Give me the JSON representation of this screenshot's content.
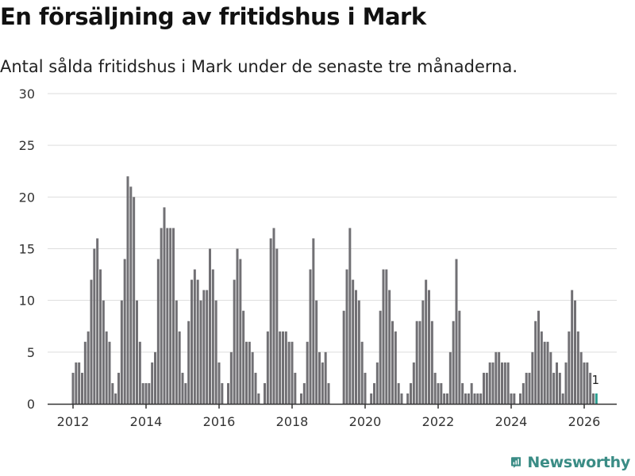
{
  "colors": {
    "bar": "#717074",
    "highlight": "#2a9d8f",
    "grid": "#dddddd",
    "axis": "#333333",
    "brand": "#3a8c85"
  },
  "brand": {
    "name": "Newsworthy"
  },
  "chart_data": {
    "type": "bar",
    "title": "En försäljning av fritidshus i Mark",
    "subtitle": "Antal sålda fritidshus i Mark under de senaste tre månaderna.",
    "xlabel": "",
    "ylabel": "",
    "ylim": [
      0,
      30
    ],
    "yticks": [
      0,
      5,
      10,
      15,
      20,
      25,
      30
    ],
    "xticks": [
      "2012",
      "2014",
      "2016",
      "2018",
      "2020",
      "2022",
      "2024",
      "2026"
    ],
    "grid": true,
    "start": "2012-01",
    "values": [
      3,
      4,
      4,
      3,
      6,
      7,
      12,
      15,
      16,
      13,
      10,
      7,
      6,
      2,
      1,
      3,
      10,
      14,
      22,
      21,
      20,
      10,
      6,
      2,
      2,
      2,
      4,
      5,
      14,
      17,
      19,
      17,
      17,
      17,
      10,
      7,
      3,
      2,
      8,
      12,
      13,
      12,
      10,
      11,
      11,
      15,
      13,
      10,
      4,
      2,
      0,
      2,
      5,
      12,
      15,
      14,
      9,
      6,
      6,
      5,
      3,
      1,
      0,
      2,
      7,
      16,
      17,
      15,
      7,
      7,
      7,
      6,
      6,
      3,
      0,
      1,
      2,
      6,
      13,
      16,
      10,
      5,
      4,
      5,
      2,
      0,
      0,
      0,
      0,
      9,
      13,
      17,
      12,
      11,
      10,
      6,
      3,
      0,
      1,
      2,
      4,
      9,
      13,
      13,
      11,
      8,
      7,
      2,
      1,
      0,
      1,
      2,
      4,
      8,
      8,
      10,
      12,
      11,
      8,
      3,
      2,
      2,
      1,
      1,
      5,
      8,
      14,
      9,
      2,
      1,
      1,
      2,
      1,
      1,
      1,
      3,
      3,
      4,
      4,
      5,
      5,
      4,
      4,
      4,
      1,
      1,
      0,
      1,
      2,
      3,
      3,
      5,
      8,
      9,
      7,
      6,
      6,
      5,
      3,
      4,
      3,
      1,
      4,
      7,
      11,
      10,
      7,
      5,
      4,
      4,
      3,
      1,
      1
    ],
    "highlight_label": "1",
    "annotations": [
      {
        "text": "1",
        "at": "last"
      }
    ]
  }
}
